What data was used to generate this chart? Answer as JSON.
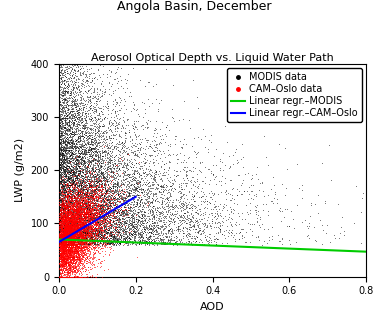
{
  "title": "Angola Basin, December",
  "subtitle": "Aerosol Optical Depth vs. Liquid Water Path",
  "xlabel": "AOD",
  "ylabel": "LWP (g/m2)",
  "xlim": [
    0.0,
    0.8
  ],
  "ylim": [
    0.0,
    400.0
  ],
  "xticks": [
    0.0,
    0.2,
    0.4,
    0.6,
    0.8
  ],
  "yticks": [
    0.0,
    100.0,
    200.0,
    300.0,
    400.0
  ],
  "modis_color": "#000000",
  "camoslo_color": "#ff0000",
  "modis_line_color": "#00cc00",
  "camoslo_line_color": "#0000ff",
  "modis_line": {
    "x0": 0.0,
    "y0": 70.0,
    "x1": 0.8,
    "y1": 47.0
  },
  "camoslo_line": {
    "x0": 0.0,
    "y0": 65.0,
    "x1": 0.2,
    "y1": 150.0
  },
  "seed": 42,
  "n_modis": 12000,
  "n_camoslo": 8000
}
